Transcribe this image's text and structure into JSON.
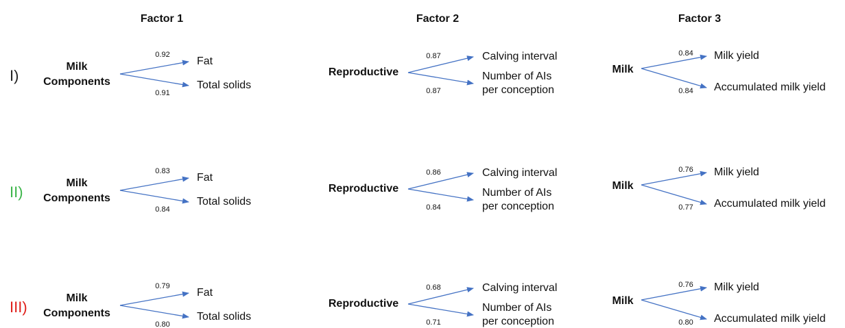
{
  "headers": [
    "Factor 1",
    "Factor 2",
    "Factor 3"
  ],
  "rows": [
    {
      "label": "I)",
      "color": "#222222",
      "blocks": [
        {
          "source": [
            "Milk",
            "Components"
          ],
          "targets": [
            {
              "lines": [
                "Fat"
              ],
              "loading": "0.92"
            },
            {
              "lines": [
                "Total solids"
              ],
              "loading": "0.91"
            }
          ]
        },
        {
          "source": [
            "Reproductive"
          ],
          "targets": [
            {
              "lines": [
                "Calving interval"
              ],
              "loading": "0.87"
            },
            {
              "lines": [
                "Number of AIs",
                "per conception"
              ],
              "loading": "0.87"
            }
          ]
        },
        {
          "source": [
            "Milk"
          ],
          "targets": [
            {
              "lines": [
                "Milk yield"
              ],
              "loading": "0.84"
            },
            {
              "lines": [
                "Accumulated milk yield"
              ],
              "loading": "0.84"
            }
          ]
        }
      ]
    },
    {
      "label": "II)",
      "color": "#3cb54a",
      "blocks": [
        {
          "source": [
            "Milk",
            "Components"
          ],
          "targets": [
            {
              "lines": [
                "Fat"
              ],
              "loading": "0.83"
            },
            {
              "lines": [
                "Total solids"
              ],
              "loading": "0.84"
            }
          ]
        },
        {
          "source": [
            "Reproductive"
          ],
          "targets": [
            {
              "lines": [
                "Calving interval"
              ],
              "loading": "0.86"
            },
            {
              "lines": [
                "Number of AIs",
                "per conception"
              ],
              "loading": "0.84"
            }
          ]
        },
        {
          "source": [
            "Milk"
          ],
          "targets": [
            {
              "lines": [
                "Milk yield"
              ],
              "loading": "0.76"
            },
            {
              "lines": [
                "Accumulated milk yield"
              ],
              "loading": "0.77"
            }
          ]
        }
      ]
    },
    {
      "label": "III)",
      "color": "#e0201b",
      "blocks": [
        {
          "source": [
            "Milk",
            "Components"
          ],
          "targets": [
            {
              "lines": [
                "Fat"
              ],
              "loading": "0.79"
            },
            {
              "lines": [
                "Total solids"
              ],
              "loading": "0.80"
            }
          ]
        },
        {
          "source": [
            "Reproductive"
          ],
          "targets": [
            {
              "lines": [
                "Calving interval"
              ],
              "loading": "0.68"
            },
            {
              "lines": [
                "Number of AIs",
                "per conception"
              ],
              "loading": "0.71"
            }
          ]
        },
        {
          "source": [
            "Milk"
          ],
          "targets": [
            {
              "lines": [
                "Milk yield"
              ],
              "loading": "0.76"
            },
            {
              "lines": [
                "Accumulated milk yield"
              ],
              "loading": "0.80"
            }
          ]
        }
      ]
    }
  ]
}
